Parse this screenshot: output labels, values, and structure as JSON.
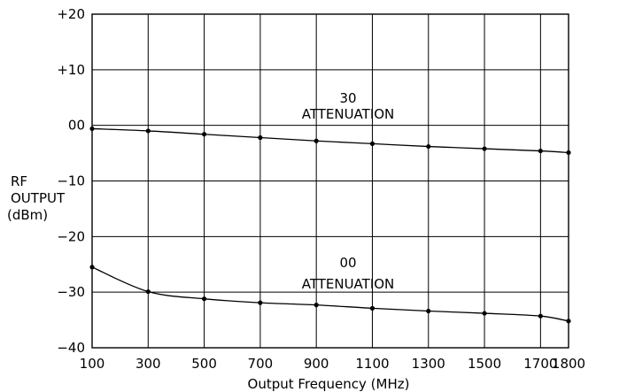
{
  "chart_data": {
    "type": "line",
    "xlabel": "Output Frequency (MHz)",
    "ylabel": [
      "RF",
      "OUTPUT",
      "(dBm)"
    ],
    "xlim": [
      100,
      1800
    ],
    "ylim": [
      -40,
      20
    ],
    "x_ticks": [
      100,
      300,
      500,
      700,
      900,
      1100,
      1300,
      1500,
      1700,
      1800
    ],
    "x_tick_labels": [
      "100",
      "300",
      "500",
      "700",
      "900",
      "1100",
      "1300",
      "1500",
      "1700",
      "1800"
    ],
    "y_ticks": [
      20,
      10,
      0,
      -10,
      -20,
      -30,
      -40
    ],
    "y_tick_labels": [
      "+20",
      "+10",
      "00",
      "−10",
      "−20",
      "−30",
      "−40"
    ],
    "grid": true,
    "series": [
      {
        "name": "30 ATTENUATION",
        "x": [
          100,
          300,
          500,
          700,
          900,
          1100,
          1300,
          1500,
          1700,
          1800
        ],
        "y": [
          -0.6,
          -1.0,
          -1.6,
          -2.2,
          -2.8,
          -3.3,
          -3.8,
          -4.2,
          -4.6,
          -4.9
        ]
      },
      {
        "name": "00 ATTENUATION",
        "x": [
          100,
          300,
          500,
          700,
          900,
          1100,
          1300,
          1500,
          1700,
          1800
        ],
        "y": [
          -25.5,
          -29.9,
          -31.2,
          -31.9,
          -32.3,
          -32.9,
          -33.4,
          -33.8,
          -34.3,
          -35.2
        ]
      }
    ],
    "annotations": [
      {
        "lines": [
          "30",
          "ATTENUATION"
        ],
        "series": 0
      },
      {
        "lines": [
          "00",
          "ATTENUATION"
        ],
        "series": 1
      }
    ],
    "colors": {
      "line": "#000000",
      "grid": "#000000"
    }
  }
}
